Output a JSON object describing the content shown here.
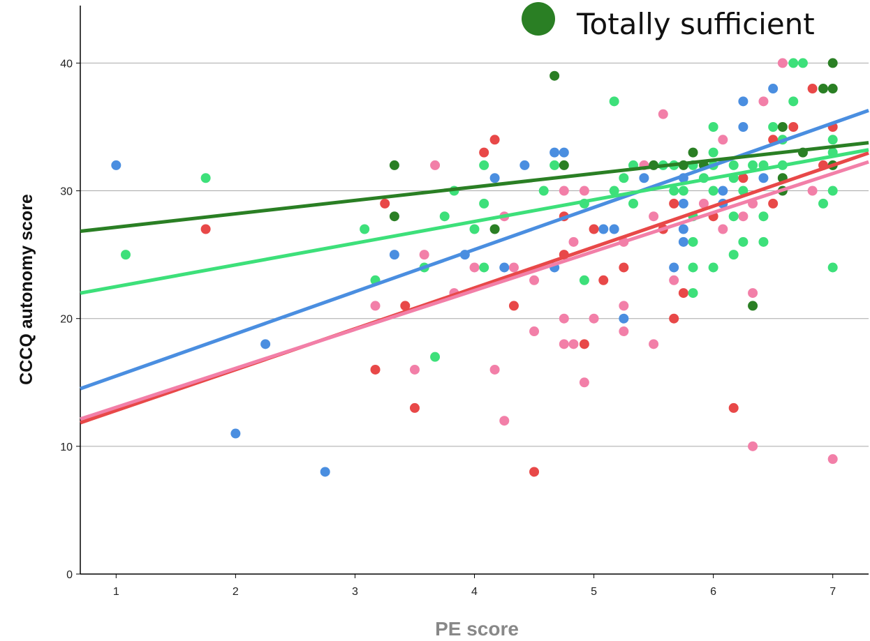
{
  "chart_data": {
    "type": "scatter",
    "xlabel": "PE score",
    "ylabel": "CCCQ autonomy score",
    "xlim": [
      0.7,
      7.3
    ],
    "ylim": [
      0,
      44.5
    ],
    "x_ticks": [
      1,
      2,
      3,
      4,
      5,
      6,
      7
    ],
    "y_ticks": [
      0,
      10,
      20,
      30,
      40
    ],
    "grid": "horizontal",
    "legend": {
      "placement": "top-right",
      "entries": [
        {
          "label": "Totally sufficient",
          "color": "#2a7f24"
        }
      ]
    },
    "series": [
      {
        "color": "#4a8ee0",
        "fit": {
          "slope": 3.3,
          "intercept": 12.2
        },
        "points": [
          [
            1,
            32
          ],
          [
            2,
            11
          ],
          [
            2.25,
            18
          ],
          [
            2.75,
            8
          ],
          [
            3.33,
            25
          ],
          [
            3.92,
            25
          ],
          [
            4.17,
            31
          ],
          [
            4.25,
            24
          ],
          [
            4.42,
            32
          ],
          [
            4.67,
            33
          ],
          [
            4.67,
            24
          ],
          [
            4.75,
            33
          ],
          [
            5.08,
            27
          ],
          [
            5.17,
            27
          ],
          [
            5.25,
            20
          ],
          [
            5.42,
            31
          ],
          [
            5.67,
            24
          ],
          [
            5.75,
            31
          ],
          [
            5.75,
            29
          ],
          [
            5.75,
            27
          ],
          [
            5.75,
            26
          ],
          [
            6.08,
            30
          ],
          [
            6.08,
            29
          ],
          [
            6.25,
            37
          ],
          [
            6.25,
            35
          ],
          [
            6.42,
            31
          ],
          [
            6.5,
            38
          ]
        ]
      },
      {
        "color": "#e84848",
        "fit": {
          "slope": 3.2,
          "intercept": 9.6
        },
        "points": [
          [
            1.75,
            27
          ],
          [
            3.17,
            16
          ],
          [
            3.25,
            29
          ],
          [
            3.42,
            21
          ],
          [
            3.5,
            13
          ],
          [
            4.08,
            33
          ],
          [
            4.17,
            34
          ],
          [
            4.33,
            21
          ],
          [
            4.5,
            8
          ],
          [
            4.75,
            28
          ],
          [
            4.75,
            25
          ],
          [
            4.92,
            18
          ],
          [
            5,
            27
          ],
          [
            5.08,
            23
          ],
          [
            5.25,
            24
          ],
          [
            5.58,
            27
          ],
          [
            5.67,
            29
          ],
          [
            5.67,
            20
          ],
          [
            5.75,
            22
          ],
          [
            6,
            28
          ],
          [
            6.17,
            13
          ],
          [
            6.25,
            31
          ],
          [
            6.5,
            34
          ],
          [
            6.5,
            29
          ],
          [
            6.67,
            35
          ],
          [
            6.83,
            38
          ],
          [
            6.92,
            32
          ],
          [
            7,
            35
          ]
        ]
      },
      {
        "color": "#f27fa8",
        "fit": {
          "slope": 3.05,
          "intercept": 10.0
        },
        "points": [
          [
            3.17,
            21
          ],
          [
            3.5,
            16
          ],
          [
            3.58,
            25
          ],
          [
            3.67,
            32
          ],
          [
            3.83,
            22
          ],
          [
            4,
            24
          ],
          [
            4.17,
            16
          ],
          [
            4.25,
            28
          ],
          [
            4.25,
            12
          ],
          [
            4.33,
            24
          ],
          [
            4.5,
            23
          ],
          [
            4.5,
            19
          ],
          [
            4.75,
            30
          ],
          [
            4.75,
            20
          ],
          [
            4.75,
            18
          ],
          [
            4.83,
            26
          ],
          [
            4.83,
            18
          ],
          [
            4.92,
            30
          ],
          [
            4.92,
            15
          ],
          [
            5,
            20
          ],
          [
            5.25,
            26
          ],
          [
            5.25,
            21
          ],
          [
            5.25,
            19
          ],
          [
            5.42,
            32
          ],
          [
            5.5,
            28
          ],
          [
            5.5,
            18
          ],
          [
            5.58,
            36
          ],
          [
            5.67,
            23
          ],
          [
            5.92,
            29
          ],
          [
            6.08,
            34
          ],
          [
            6.08,
            27
          ],
          [
            6.25,
            28
          ],
          [
            6.33,
            29
          ],
          [
            6.33,
            22
          ],
          [
            6.33,
            10
          ],
          [
            6.42,
            37
          ],
          [
            6.58,
            40
          ],
          [
            6.83,
            30
          ],
          [
            7,
            9
          ]
        ]
      },
      {
        "color": "#3de07a",
        "fit": {
          "slope": 1.7,
          "intercept": 20.8
        },
        "points": [
          [
            1.08,
            25
          ],
          [
            1.75,
            31
          ],
          [
            3.08,
            27
          ],
          [
            3.17,
            23
          ],
          [
            3.58,
            24
          ],
          [
            3.67,
            17
          ],
          [
            3.75,
            28
          ],
          [
            3.83,
            30
          ],
          [
            4,
            27
          ],
          [
            4.08,
            32
          ],
          [
            4.08,
            29
          ],
          [
            4.08,
            24
          ],
          [
            4.58,
            30
          ],
          [
            4.67,
            32
          ],
          [
            4.92,
            29
          ],
          [
            4.92,
            23
          ],
          [
            5.17,
            37
          ],
          [
            5.17,
            30
          ],
          [
            5.25,
            31
          ],
          [
            5.33,
            32
          ],
          [
            5.33,
            29
          ],
          [
            5.58,
            32
          ],
          [
            5.67,
            32
          ],
          [
            5.67,
            30
          ],
          [
            5.75,
            30
          ],
          [
            5.83,
            32
          ],
          [
            5.83,
            28
          ],
          [
            5.83,
            26
          ],
          [
            5.83,
            24
          ],
          [
            5.83,
            22
          ],
          [
            5.92,
            31
          ],
          [
            6,
            35
          ],
          [
            6,
            33
          ],
          [
            6,
            32
          ],
          [
            6,
            30
          ],
          [
            6,
            24
          ],
          [
            6.17,
            32
          ],
          [
            6.17,
            31
          ],
          [
            6.17,
            28
          ],
          [
            6.17,
            25
          ],
          [
            6.25,
            30
          ],
          [
            6.25,
            26
          ],
          [
            6.33,
            32
          ],
          [
            6.42,
            32
          ],
          [
            6.42,
            28
          ],
          [
            6.42,
            26
          ],
          [
            6.5,
            35
          ],
          [
            6.58,
            34
          ],
          [
            6.58,
            32
          ],
          [
            6.67,
            40
          ],
          [
            6.67,
            37
          ],
          [
            6.75,
            40
          ],
          [
            6.92,
            29
          ],
          [
            7,
            34
          ],
          [
            7,
            33
          ],
          [
            7,
            30
          ],
          [
            7,
            24
          ]
        ]
      },
      {
        "color": "#2a7f24",
        "fit": {
          "slope": 1.05,
          "intercept": 26.1
        },
        "points": [
          [
            3.33,
            32
          ],
          [
            3.33,
            28
          ],
          [
            4.17,
            27
          ],
          [
            4.67,
            39
          ],
          [
            4.75,
            32
          ],
          [
            5.5,
            32
          ],
          [
            5.75,
            32
          ],
          [
            5.83,
            33
          ],
          [
            5.92,
            32
          ],
          [
            6.33,
            21
          ],
          [
            6.58,
            35
          ],
          [
            6.58,
            31
          ],
          [
            6.58,
            30
          ],
          [
            6.75,
            33
          ],
          [
            6.92,
            38
          ],
          [
            7,
            40
          ],
          [
            7,
            38
          ],
          [
            7,
            32
          ]
        ]
      }
    ]
  }
}
